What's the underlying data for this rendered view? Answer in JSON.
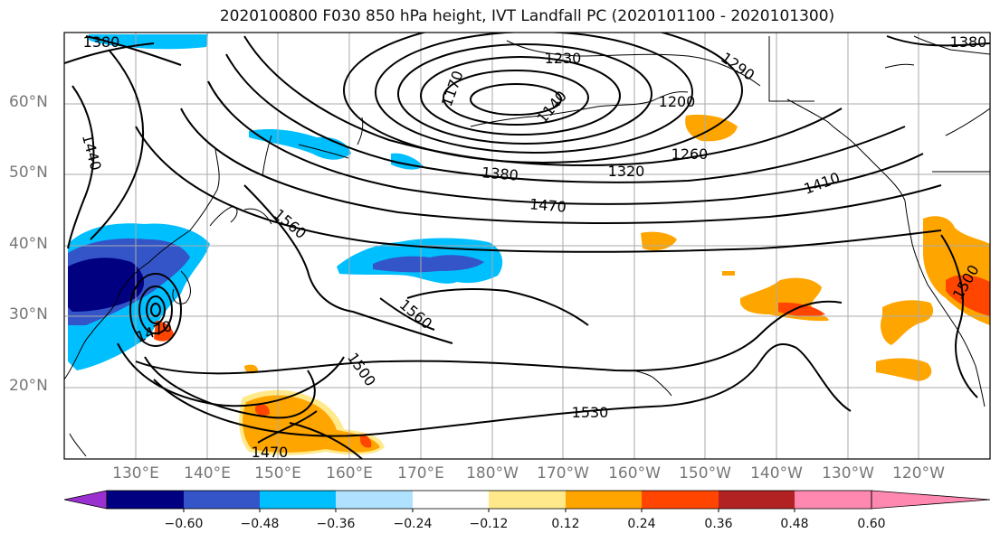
{
  "title": "2020100800 F030 850 hPa height, IVT Landfall PC (2020101100 - 2020101300)",
  "lat_labels": [
    "60°N",
    "50°N",
    "40°N",
    "30°N",
    "20°N"
  ],
  "lon_labels": [
    "130°E",
    "140°E",
    "150°E",
    "160°E",
    "170°E",
    "180°W",
    "170°W",
    "160°W",
    "150°W",
    "140°W",
    "130°W",
    "120°W"
  ],
  "contour_labels": [
    "1380",
    "1230",
    "1290",
    "1170",
    "1140",
    "1200",
    "1440",
    "1260",
    "1380",
    "1320",
    "1410",
    "1470",
    "1560",
    "1560",
    "1470",
    "1500",
    "1530",
    "1470",
    "1500",
    "1380"
  ],
  "colorbar": {
    "colors": [
      "#9b30d0",
      "#000080",
      "#3455c8",
      "#00bfff",
      "#b0e2ff",
      "#ffffff",
      "#ffe98a",
      "#ffa500",
      "#ff4500",
      "#b22222",
      "#ff88b0"
    ],
    "tick_labels": [
      "−0.60",
      "−0.48",
      "−0.36",
      "−0.24",
      "−0.12",
      "0.12",
      "0.24",
      "0.36",
      "0.48",
      "0.60"
    ]
  },
  "colors": {
    "land_lines": "#000000",
    "grid": "#aaaaaa",
    "axis_text": "#777777"
  }
}
